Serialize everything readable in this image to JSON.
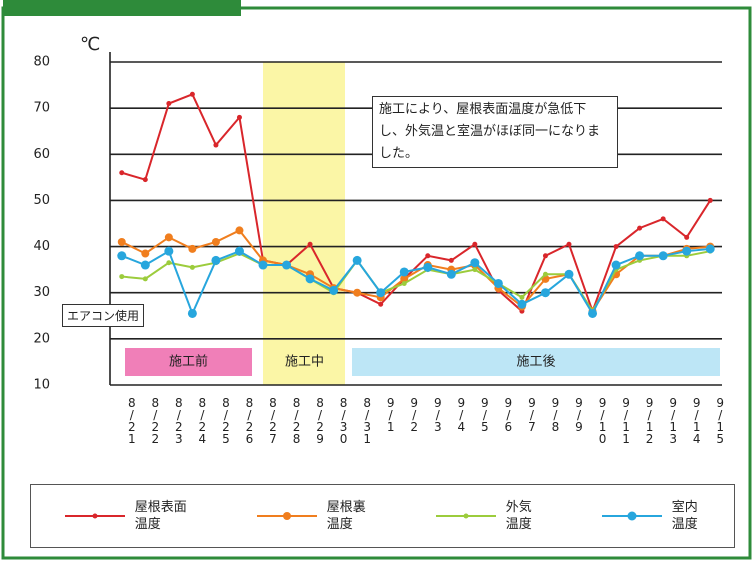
{
  "chart_data": {
    "type": "line",
    "y_unit": "℃",
    "annotation": "施工により、屋根表面温度が急低下し、外気温と室温がほぼ同一になりました。",
    "side_note": "エアコン使用",
    "phases": [
      "施工前",
      "施工中",
      "施工後"
    ],
    "categories": [
      "8/21",
      "8/22",
      "8/23",
      "8/24",
      "8/25",
      "8/26",
      "8/27",
      "8/28",
      "8/29",
      "8/30",
      "8/31",
      "9/1",
      "9/2",
      "9/3",
      "9/4",
      "9/5",
      "9/6",
      "9/7",
      "9/8",
      "9/9",
      "9/10",
      "9/11",
      "9/12",
      "9/13",
      "9/14",
      "9/15"
    ],
    "series": [
      {
        "name": "屋根表面温度",
        "color": "#d9262b",
        "values": [
          56,
          54.5,
          71,
          73,
          62,
          68,
          37,
          36,
          40.5,
          31,
          30,
          27.5,
          33,
          38,
          37,
          40.5,
          30.5,
          26,
          38,
          40.5,
          26,
          40,
          44,
          46,
          42,
          50
        ]
      },
      {
        "name": "屋根裏温度",
        "color": "#f07e1e",
        "values": [
          41,
          38.5,
          42,
          39.5,
          41,
          43.5,
          37,
          36,
          34,
          31,
          30,
          29,
          33,
          36,
          35,
          36,
          31,
          27,
          33,
          34,
          26,
          34,
          38,
          38,
          39.5,
          40
        ]
      },
      {
        "name": "外気温度",
        "color": "#9ccc3c",
        "values": [
          33.5,
          33,
          36.5,
          35.5,
          36.5,
          38.5,
          36,
          36,
          33,
          30,
          37,
          30,
          32,
          35,
          34,
          35,
          32,
          29,
          34,
          34,
          26,
          35,
          37,
          38,
          38,
          39
        ]
      },
      {
        "name": "室内温度",
        "color": "#27a6dd",
        "values": [
          38,
          36,
          39,
          25.5,
          37,
          39,
          36,
          36,
          33,
          30.5,
          37,
          30,
          34.5,
          35.5,
          34,
          36.5,
          32,
          27.5,
          30,
          34,
          25.5,
          36,
          38,
          38,
          39,
          39.5
        ]
      }
    ],
    "ylim": [
      10,
      80
    ],
    "yticks": [
      10,
      20,
      30,
      40,
      50,
      60,
      70,
      80
    ],
    "grid": true
  }
}
